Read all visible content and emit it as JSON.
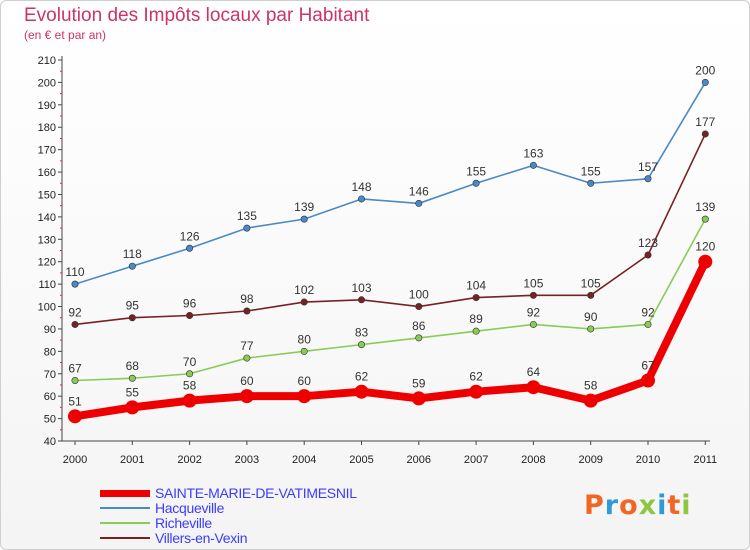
{
  "header": {
    "title": "Evolution des Impôts locaux par Habitant",
    "subtitle": "(en € et par an)"
  },
  "logo": {
    "letters": [
      "P",
      "r",
      "o",
      "x",
      "i",
      "t",
      "i"
    ],
    "colors": [
      "#f26522",
      "#2f9ad6",
      "#f26522",
      "#8dc63f",
      "#2f9ad6",
      "#f26522",
      "#8dc63f"
    ]
  },
  "chart_data": {
    "type": "line",
    "x": [
      "2000",
      "2001",
      "2002",
      "2003",
      "2004",
      "2005",
      "2006",
      "2007",
      "2008",
      "2009",
      "2010",
      "2011"
    ],
    "ylim": [
      40,
      210
    ],
    "yticks": [
      40,
      50,
      60,
      70,
      80,
      90,
      100,
      110,
      120,
      130,
      140,
      150,
      160,
      170,
      180,
      190,
      200,
      210
    ],
    "grid": false,
    "legend_position": "bottom-left",
    "series": [
      {
        "name": "SAINTE-MARIE-DE-VATIMESNIL",
        "values": [
          51,
          55,
          58,
          60,
          60,
          62,
          59,
          62,
          64,
          58,
          67,
          120
        ],
        "color": "#ee0000",
        "emphasis": true
      },
      {
        "name": "Hacqueville",
        "values": [
          110,
          118,
          126,
          135,
          139,
          148,
          146,
          155,
          163,
          155,
          157,
          200
        ],
        "color": "#4a89c8",
        "emphasis": false
      },
      {
        "name": "Richeville",
        "values": [
          67,
          68,
          70,
          77,
          80,
          83,
          86,
          89,
          92,
          90,
          92,
          139
        ],
        "color": "#88cc55",
        "emphasis": false
      },
      {
        "name": "Villers-en-Vexin",
        "values": [
          92,
          95,
          96,
          98,
          102,
          103,
          100,
          104,
          105,
          105,
          123,
          177
        ],
        "color": "#772222",
        "emphasis": false
      }
    ]
  }
}
